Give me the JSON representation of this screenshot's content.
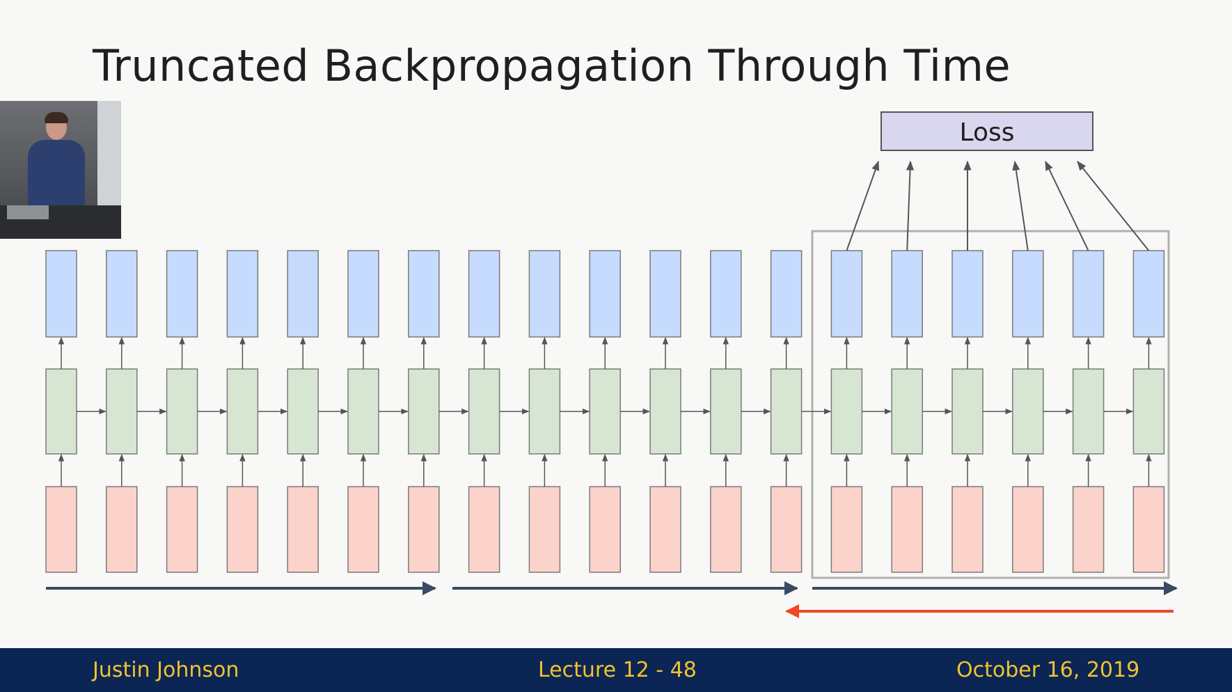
{
  "slide": {
    "title": "Truncated Backpropagation Through Time",
    "loss_label": "Loss"
  },
  "footer": {
    "author": "Justin Johnson",
    "lecture": "Lecture 12 - 48",
    "date": "October 16, 2019"
  },
  "diagram": {
    "timesteps": 19,
    "truncation_chunk_size": 6,
    "chunks_forward": 3,
    "current_chunk_index": 2,
    "colors": {
      "output": "#c6dbfd",
      "hidden": "#d6e6d2",
      "input": "#fbd3cb",
      "box_border": "#7a7a7a",
      "arrow": "#555555",
      "forward_arrow": "#3a4a63",
      "backward_arrow": "#f04a25",
      "loss_fill": "#d9d6ef",
      "window_border": "#b0b0b0"
    }
  }
}
